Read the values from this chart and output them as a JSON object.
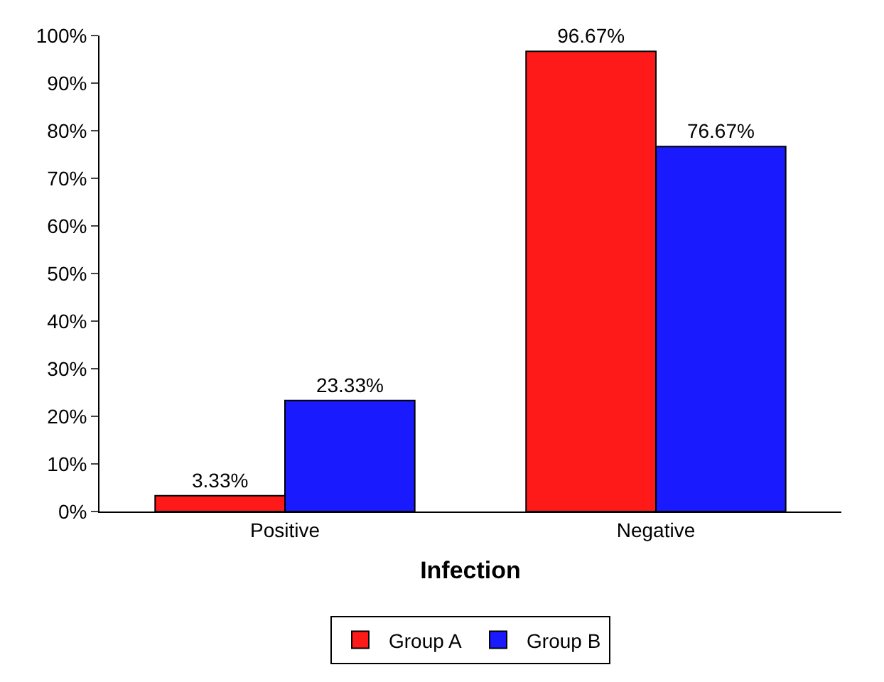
{
  "chart_data": {
    "type": "bar",
    "xlabel": "Infection",
    "categories": [
      "Positive",
      "Negative"
    ],
    "series": [
      {
        "name": "Group A",
        "color": "#ff1a1a",
        "values": [
          3.33,
          96.67
        ],
        "value_labels": [
          "3.33%",
          "96.67%"
        ]
      },
      {
        "name": "Group B",
        "color": "#1a1aff",
        "values": [
          23.33,
          76.67
        ],
        "value_labels": [
          "23.33%",
          "76.67%"
        ]
      }
    ],
    "ylim": [
      0,
      100
    ],
    "yticks": [
      {
        "value": 0,
        "label": "0%"
      },
      {
        "value": 10,
        "label": "10%"
      },
      {
        "value": 20,
        "label": "20%"
      },
      {
        "value": 30,
        "label": "30%"
      },
      {
        "value": 40,
        "label": "40%"
      },
      {
        "value": 50,
        "label": "50%"
      },
      {
        "value": 60,
        "label": "60%"
      },
      {
        "value": 70,
        "label": "70%"
      },
      {
        "value": 80,
        "label": "80%"
      },
      {
        "value": 90,
        "label": "90%"
      },
      {
        "value": 100,
        "label": "100%"
      }
    ],
    "grid": false,
    "legend": "bottom"
  }
}
